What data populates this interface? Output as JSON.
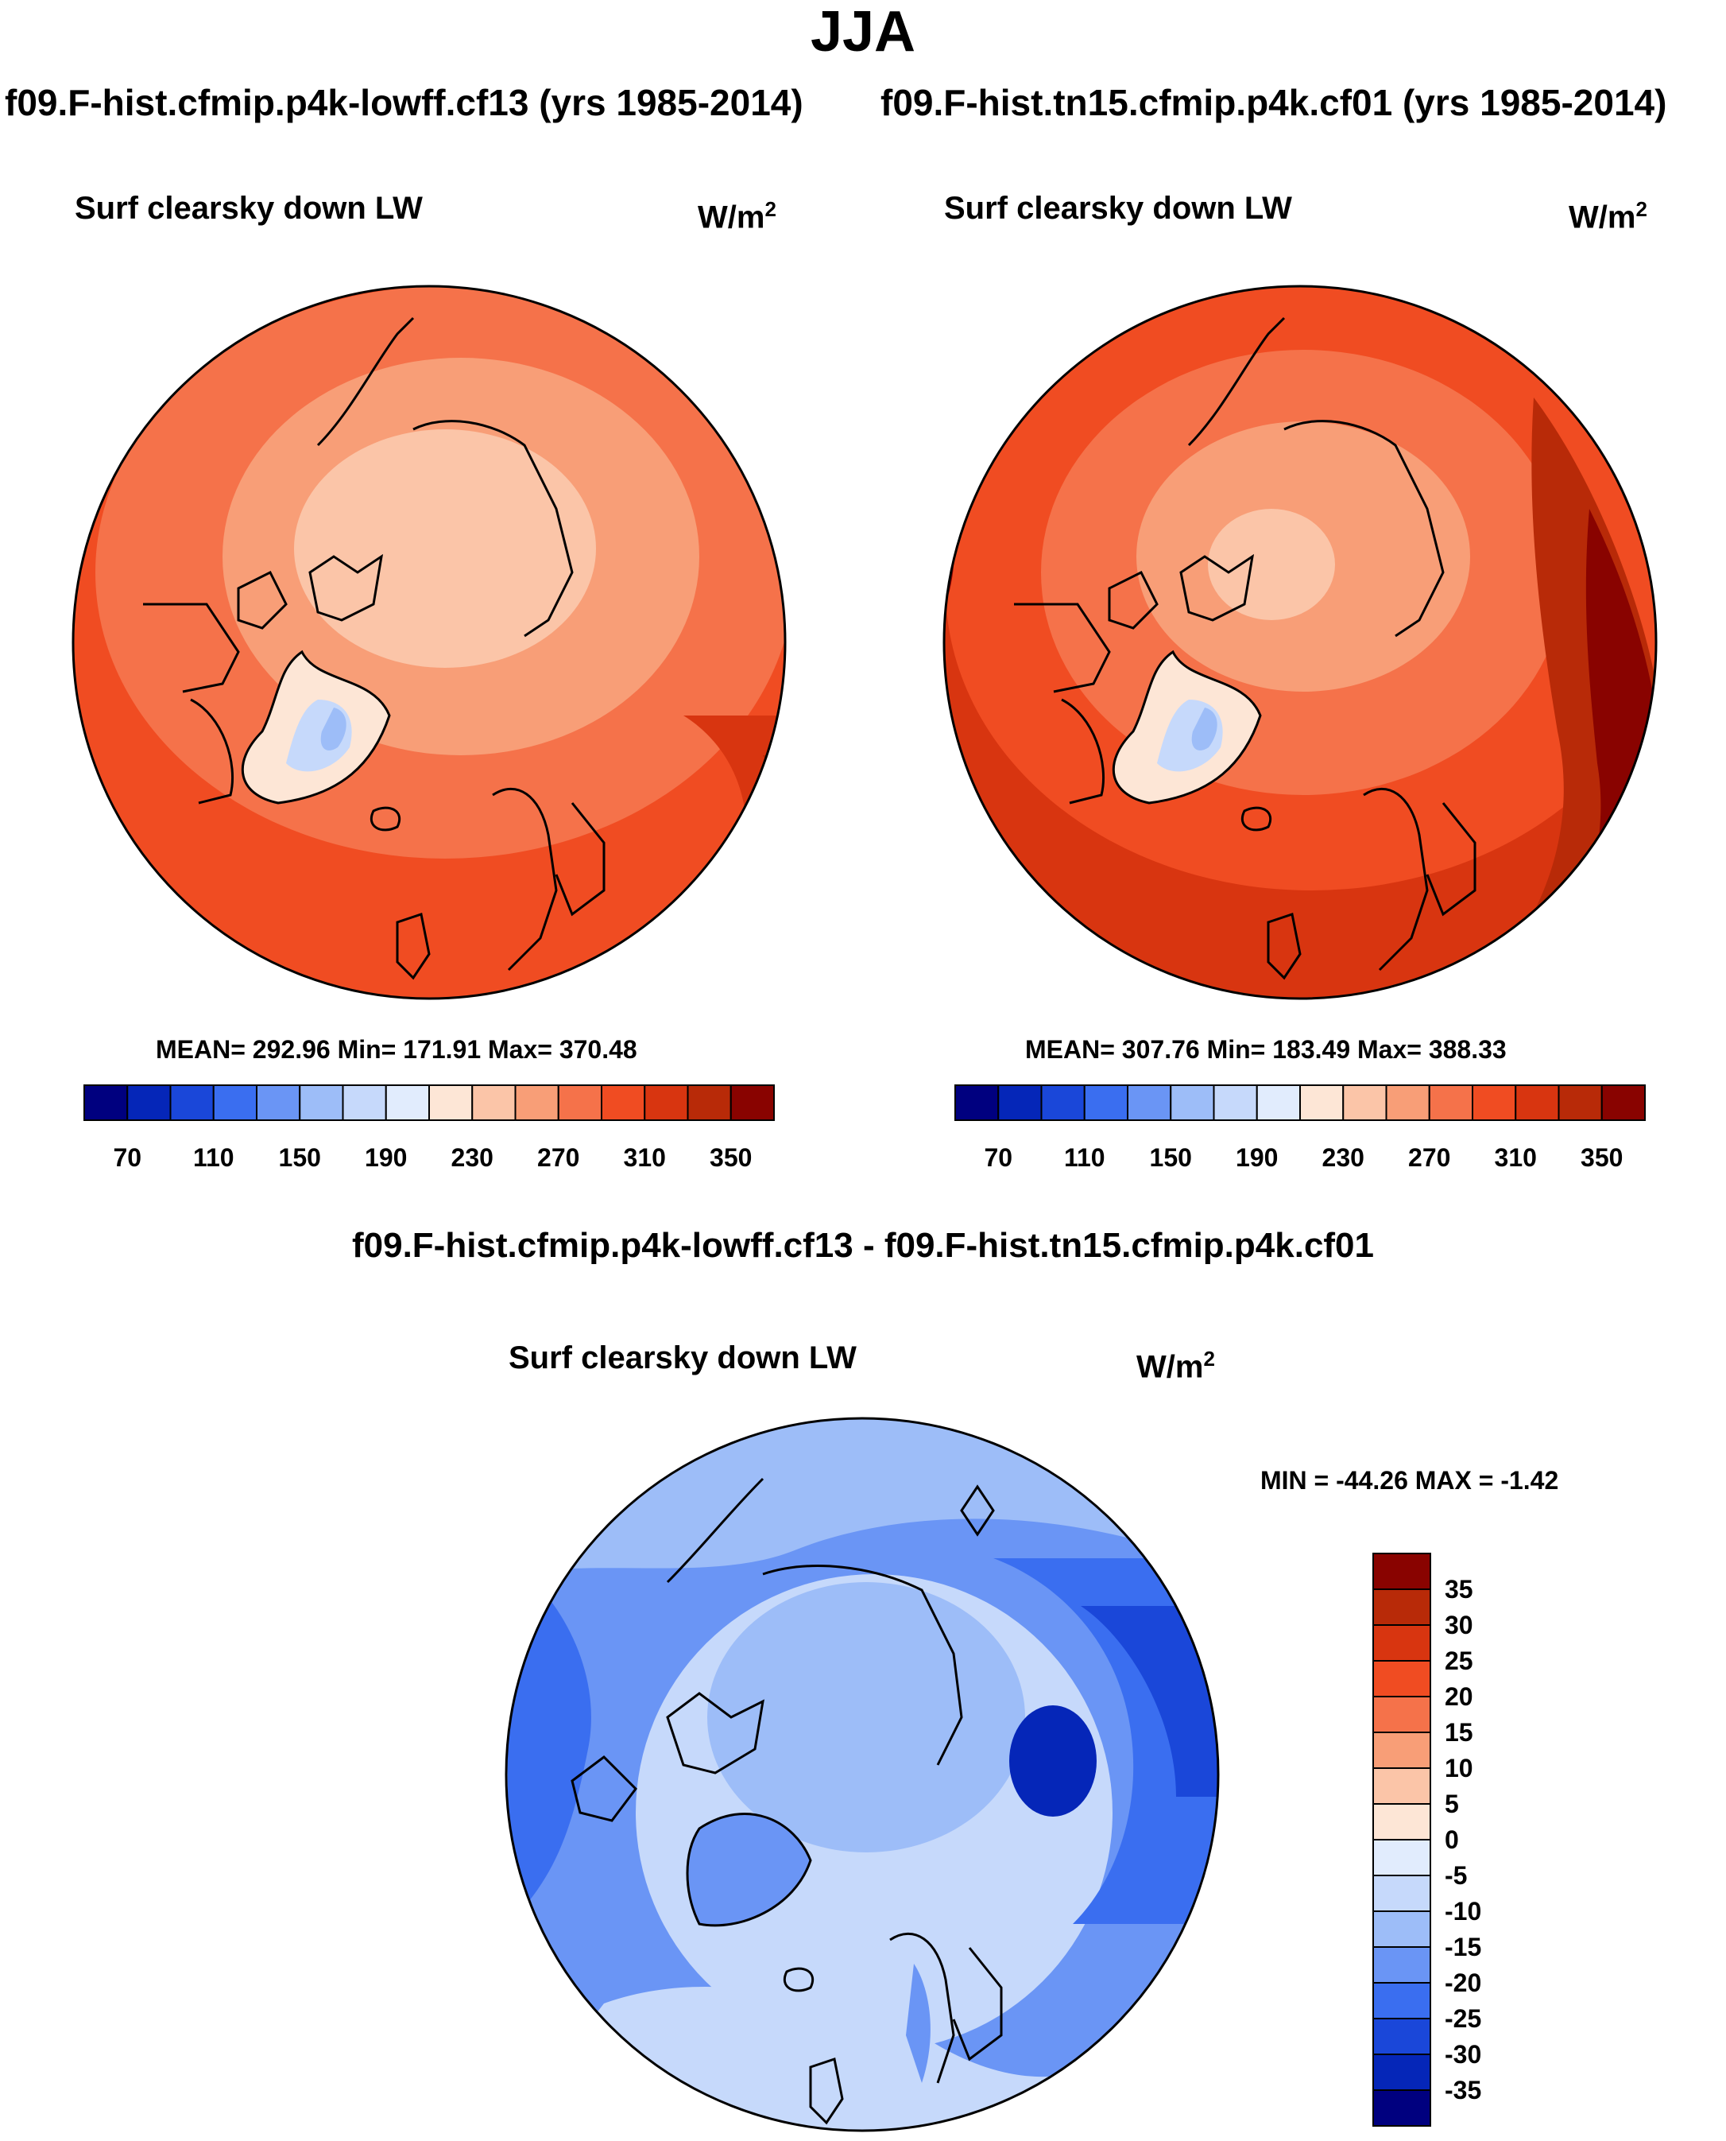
{
  "main_title": "JJA",
  "panels": {
    "left": {
      "case_title": "f09.F-hist.cfmip.p4k-lowff.cf13 (yrs 1985-2014)",
      "variable": "Surf clearsky down LW",
      "units_base": "W/m",
      "units_exp": "2",
      "stats": "MEAN= 292.96  Min= 171.91  Max= 370.48"
    },
    "right": {
      "case_title": "f09.F-hist.tn15.cfmip.p4k.cf01 (yrs 1985-2014)",
      "variable": "Surf clearsky down LW",
      "units_base": "W/m",
      "units_exp": "2",
      "stats": "MEAN= 307.76  Min= 183.49  Max= 388.33"
    },
    "diff": {
      "title": "f09.F-hist.cfmip.p4k-lowff.cf13 - f09.F-hist.tn15.cfmip.p4k.cf01",
      "variable": "Surf clearsky down LW",
      "units_base": "W/m",
      "units_exp": "2",
      "stats": "MIN = -44.26 MAX =  -1.42"
    }
  },
  "colorbar_abs": {
    "colors": [
      "#00007f",
      "#0526b8",
      "#1a47d9",
      "#3a6ef0",
      "#6a95f5",
      "#9dbdf8",
      "#c6d9fb",
      "#e1ecfd",
      "#fde6d6",
      "#fbc5a8",
      "#f89e77",
      "#f5724a",
      "#f04c22",
      "#d83510",
      "#b82a08",
      "#890300"
    ],
    "labels": [
      "70",
      "110",
      "150",
      "190",
      "230",
      "270",
      "310",
      "350"
    ]
  },
  "colorbar_diff": {
    "colors": [
      "#890300",
      "#b82a08",
      "#d83510",
      "#f04c22",
      "#f5724a",
      "#f89e77",
      "#fbc5a8",
      "#fde6d6",
      "#e1ecfd",
      "#c6d9fb",
      "#9dbdf8",
      "#6a95f5",
      "#3a6ef0",
      "#1a47d9",
      "#0526b8",
      "#00007f"
    ],
    "labels": [
      "35",
      "30",
      "25",
      "20",
      "15",
      "10",
      "5",
      "0",
      "-5",
      "-10",
      "-15",
      "-20",
      "-25",
      "-30",
      "-35"
    ]
  }
}
